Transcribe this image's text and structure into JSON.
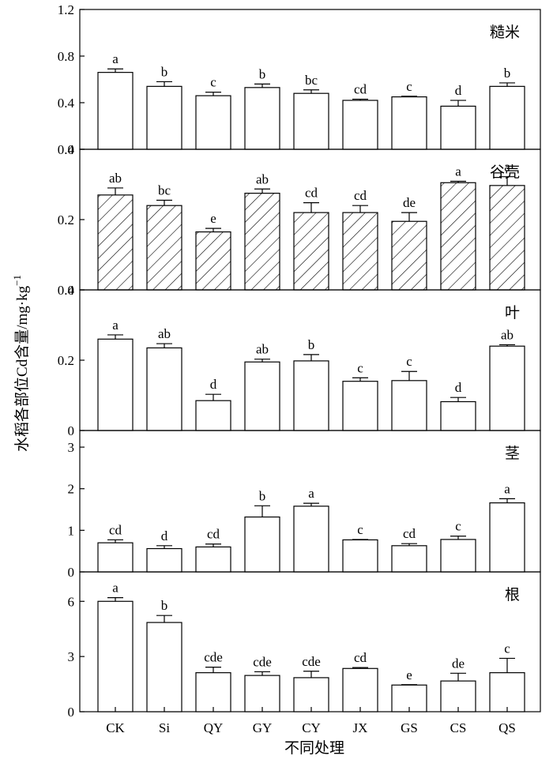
{
  "chart_data": {
    "type": "bar",
    "categories": [
      "CK",
      "Si",
      "QY",
      "GY",
      "CY",
      "JX",
      "GS",
      "CS",
      "QS"
    ],
    "xlabel": "不同处理",
    "ylabel": "水稻各部位Cd含量/mg·kg",
    "ylabel_superscript": "−1",
    "panels": [
      {
        "title": "糙米",
        "ylim": [
          0,
          1.2
        ],
        "ticks": [
          0,
          0.4,
          0.8,
          1.2
        ],
        "tick_labels": [
          "0",
          "0.4",
          "0.8",
          "1.2"
        ],
        "hatched": false,
        "values": [
          0.66,
          0.54,
          0.46,
          0.53,
          0.48,
          0.42,
          0.45,
          0.37,
          0.54
        ],
        "errors": [
          0.03,
          0.04,
          0.03,
          0.03,
          0.03,
          0.01,
          0.005,
          0.05,
          0.03
        ],
        "letters": [
          "a",
          "b",
          "c",
          "b",
          "bc",
          "cd",
          "c",
          "d",
          "b"
        ]
      },
      {
        "title": "谷壳",
        "ylim": [
          0,
          0.4
        ],
        "ticks": [
          0,
          0.2,
          0.4
        ],
        "tick_labels": [
          "0",
          "0.2",
          "0.4"
        ],
        "hatched": true,
        "values": [
          0.27,
          0.24,
          0.165,
          0.275,
          0.22,
          0.22,
          0.195,
          0.305,
          0.297
        ],
        "errors": [
          0.02,
          0.015,
          0.01,
          0.012,
          0.028,
          0.02,
          0.025,
          0.004,
          0.025
        ],
        "letters": [
          "ab",
          "bc",
          "e",
          "ab",
          "cd",
          "cd",
          "de",
          "a",
          "a"
        ]
      },
      {
        "title": "叶",
        "ylim": [
          0,
          0.4
        ],
        "ticks": [
          0,
          0.2,
          0.4
        ],
        "tick_labels": [
          "0",
          "0.2",
          "0.4"
        ],
        "hatched": false,
        "values": [
          0.26,
          0.235,
          0.085,
          0.195,
          0.198,
          0.14,
          0.142,
          0.082,
          0.24
        ],
        "errors": [
          0.012,
          0.012,
          0.018,
          0.008,
          0.018,
          0.01,
          0.026,
          0.012,
          0.004
        ],
        "letters": [
          "a",
          "ab",
          "d",
          "ab",
          "b",
          "c",
          "c",
          "d",
          "ab"
        ]
      },
      {
        "title": "茎",
        "ylim": [
          0,
          3.4
        ],
        "ticks": [
          0,
          1,
          2,
          3
        ],
        "tick_labels": [
          "0",
          "1",
          "2",
          "3"
        ],
        "hatched": false,
        "values": [
          0.7,
          0.56,
          0.6,
          1.32,
          1.58,
          0.77,
          0.63,
          0.78,
          1.66
        ],
        "errors": [
          0.07,
          0.07,
          0.07,
          0.27,
          0.07,
          0.01,
          0.05,
          0.08,
          0.1
        ],
        "letters": [
          "cd",
          "d",
          "cd",
          "b",
          "a",
          "c",
          "cd",
          "c",
          "a"
        ]
      },
      {
        "title": "根",
        "ylim": [
          0,
          7.6
        ],
        "ticks": [
          0,
          3,
          6
        ],
        "tick_labels": [
          "0",
          "3",
          "6"
        ],
        "hatched": false,
        "values": [
          6.0,
          4.85,
          2.12,
          1.97,
          1.85,
          2.35,
          1.45,
          1.67,
          2.12
        ],
        "errors": [
          0.2,
          0.38,
          0.3,
          0.2,
          0.35,
          0.05,
          0.02,
          0.42,
          0.78
        ],
        "letters": [
          "a",
          "b",
          "cde",
          "cde",
          "cde",
          "cd",
          "e",
          "de",
          "c"
        ]
      }
    ],
    "legend": "none",
    "grid": false,
    "colors": {
      "bar_fill": "#ffffff",
      "stroke": "#000000"
    }
  }
}
